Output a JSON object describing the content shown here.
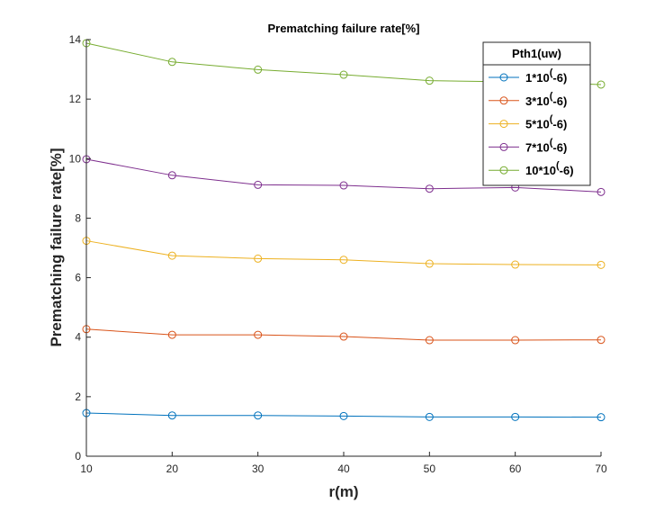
{
  "chart_data": {
    "type": "line",
    "title": "Prematching failure rate[%]",
    "xlabel": "r(m)",
    "ylabel": "Prematching failure rate[%]",
    "x": [
      10,
      20,
      30,
      40,
      50,
      60,
      70
    ],
    "xlim": [
      10,
      70
    ],
    "ylim": [
      0,
      14
    ],
    "xticks": [
      "10",
      "20",
      "30",
      "40",
      "50",
      "60",
      "70"
    ],
    "yticks": [
      "0",
      "2",
      "4",
      "6",
      "8",
      "10",
      "12",
      "14"
    ],
    "grid": false,
    "legend": {
      "title": "Pth1(uw)",
      "placement": "top-right"
    },
    "series": [
      {
        "label_base": "1*10",
        "label_sup": "(",
        "label_tail": "-6)",
        "color": "#0072BD",
        "values": [
          1.45,
          1.37,
          1.37,
          1.35,
          1.32,
          1.32,
          1.31
        ]
      },
      {
        "label_base": "3*10",
        "label_sup": "(",
        "label_tail": "-6)",
        "color": "#D95319",
        "values": [
          4.27,
          4.08,
          4.08,
          4.02,
          3.9,
          3.9,
          3.91
        ]
      },
      {
        "label_base": "5*10",
        "label_sup": "(",
        "label_tail": "-6)",
        "color": "#EDB120",
        "values": [
          7.24,
          6.74,
          6.64,
          6.6,
          6.47,
          6.44,
          6.43
        ]
      },
      {
        "label_base": "7*10",
        "label_sup": "(",
        "label_tail": "-6)",
        "color": "#7E2F8E",
        "values": [
          9.98,
          9.44,
          9.12,
          9.1,
          8.99,
          9.03,
          8.88
        ]
      },
      {
        "label_base": "10*10",
        "label_sup": "(",
        "label_tail": "-6)",
        "color": "#77AC30",
        "values": [
          13.88,
          13.25,
          12.99,
          12.82,
          12.62,
          12.58,
          12.49
        ]
      }
    ]
  }
}
